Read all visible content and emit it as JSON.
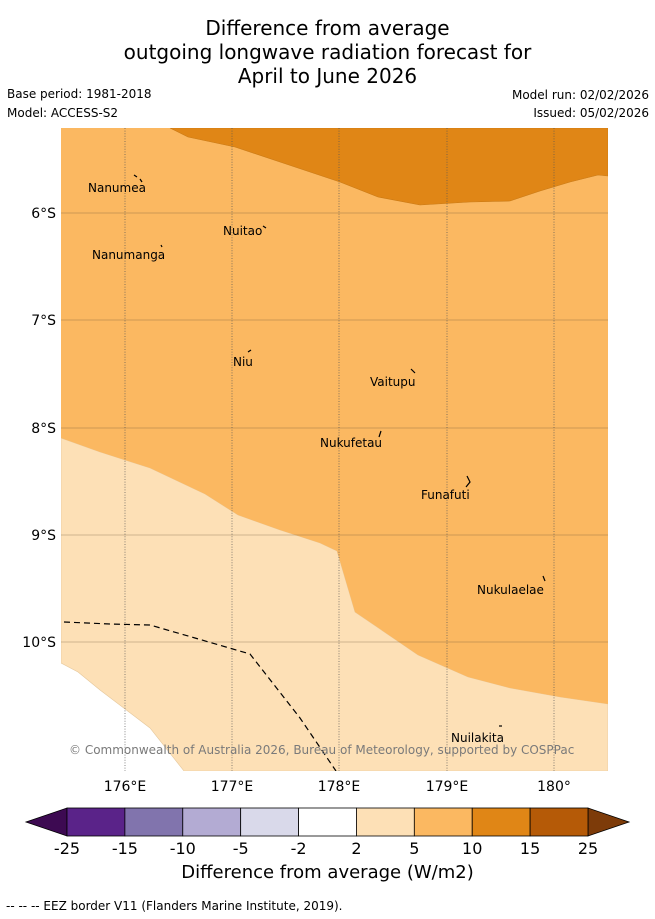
{
  "header": {
    "title_lines": [
      "Difference from average",
      "outgoing longwave radiation forecast for",
      "April to June 2026"
    ],
    "base_period": "Base period: 1981-2018",
    "model": "Model: ACCESS-S2",
    "model_run": "Model run: 02/02/2026",
    "issued": "Issued: 05/02/2026"
  },
  "map": {
    "lat_labels": [
      "6°S",
      "7°S",
      "8°S",
      "9°S",
      "10°S"
    ],
    "lon_labels": [
      "176°E",
      "177°E",
      "178°E",
      "179°E",
      "180°"
    ],
    "places": [
      "Nanumea",
      "Nuitao",
      "Nanumanga",
      "Niu",
      "Vaitupu",
      "Nukufetau",
      "Funafuti",
      "Nukulaelae",
      "Nuilakita"
    ],
    "copyright": "© Commonwealth of Australia 2026, Bureau of Meteorology, supported by COSPPac"
  },
  "colorbar": {
    "ticks": [
      "-25",
      "-15",
      "-10",
      "-5",
      "-2",
      "2",
      "5",
      "10",
      "15",
      "25"
    ],
    "colors": [
      "#5a2389",
      "#8174ad",
      "#b3abd3",
      "#d9d9ea",
      "#ffffff",
      "#fde0b6",
      "#fbb861",
      "#e08616",
      "#b55a07"
    ],
    "under_color": "#3d0a52",
    "over_color": "#7d3b09",
    "label": "Difference from average (W/m2)"
  },
  "legend": {
    "eez": "--  --  -- EEZ border V11 (Flanders Marine Institute, 2019)."
  }
}
